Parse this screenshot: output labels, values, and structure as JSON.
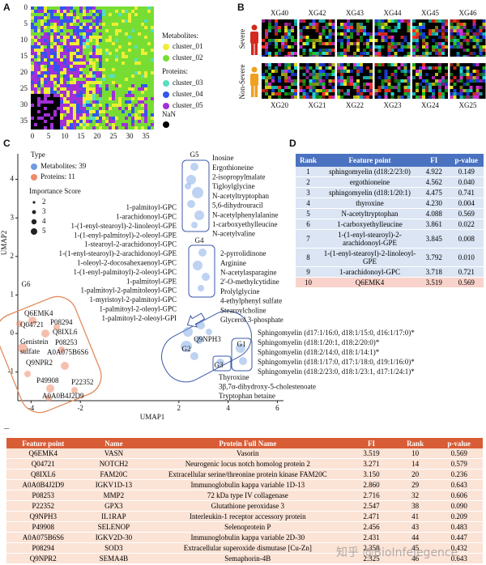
{
  "panel_a": {
    "label": "A",
    "yticks": [
      0,
      5,
      10,
      15,
      20,
      25,
      30,
      35
    ],
    "xticks": [
      0,
      5,
      10,
      15,
      20,
      25,
      30,
      35
    ],
    "metabolites_title": "Metabolites:",
    "proteins_title": "Proteins:",
    "clusters": [
      {
        "label": "cluster_01",
        "color": "#eeee33"
      },
      {
        "label": "cluster_02",
        "color": "#77dd33"
      },
      {
        "label": "cluster_03",
        "color": "#55e0c0"
      },
      {
        "label": "cluster_04",
        "color": "#3355ee"
      },
      {
        "label": "cluster_05",
        "color": "#a030d8"
      }
    ],
    "nan": {
      "label": "NaN",
      "color": "#000000"
    }
  },
  "panel_b": {
    "label": "B",
    "top_samples": [
      "XG40",
      "XG42",
      "XG43",
      "XG44",
      "XG45",
      "XG46"
    ],
    "bottom_samples": [
      "XG20",
      "XG21",
      "XG22",
      "XG23",
      "XG24",
      "XG25"
    ],
    "top_group": "Severe",
    "bottom_group": "Non-Severe"
  },
  "panel_c": {
    "label": "C",
    "type_title": "Type",
    "type_items": [
      {
        "label": "Metabolites: 39",
        "color": "#6f9be0"
      },
      {
        "label": "Proteins: 11",
        "color": "#ef8a6a"
      }
    ],
    "size_title": "Importance Score",
    "sizes": [
      2,
      3,
      4,
      5
    ],
    "x_axis_label": "UMAP1",
    "y_axis_label": "UMAP2",
    "xticks": [
      -4,
      -2,
      2,
      4,
      6
    ],
    "yticks": [
      4,
      3,
      2,
      1,
      0,
      -1
    ],
    "groups": [
      "G1",
      "G2",
      "G3",
      "G4",
      "G5",
      "G6"
    ],
    "g5_members": [
      "Inosine",
      "Ergothioneine",
      "2-isopropylmalate",
      "Tigloylglycine",
      "N-acetyltryptophan",
      "5,6-dihydrouracil",
      "N-acetylphenylalanine",
      "1-carboxyethylleucine",
      "N-acetylvaline"
    ],
    "lipid_members": [
      "1-palmitoyl-GPC",
      "1-arachidonoyl-GPC",
      "1-(1-enyl-stearoyl)-2-linoleoyl-GPE",
      "1-(1-enyl-palmitoyl)-2-oleoyl-GPE",
      "1-stearoyl-2-arachidonoyl-GPC",
      "1-(1-enyl-stearoyl)-2-arachidonoyl-GPE",
      "1-oleoyl-2-docosahexaenoyl-GPC",
      "1-(1-enyl-palmitoyl)-2-oleoyl-GPC",
      "1-palmitoyl-GPE",
      "1-palmitoyl-2-palmitoleoyl-GPC",
      "1-myristoyl-2-palmitoyl-GPC",
      "1-palmitoyl-2-oleoyl-GPC",
      "1-palmitoyl-2-oleoyl-GPI"
    ],
    "g4_members": [
      "2-pyrrolidinone",
      "Arginine",
      "N-acetylasparagine",
      "2'-O-methylcytidine",
      "Prolylglycine",
      "4-ethylphenyl sulfate",
      "Stearoylcholine",
      "Glycerol 3-phosphate"
    ],
    "g1_members": [
      "Sphingomyelin (d17:1/16:0, d18:1/15:0, d16:1/17:0)*",
      "Sphingomyelin (d18:1/20:1, d18:2/20:0)*",
      "Sphingomyelin (d18:2/14:0, d18:1/14:1)*",
      "Sphingomyelin (d18:1/17:0, d17:1/18:0, d19:1/16:0)*",
      "Sphingomyelin (d18:2/23:0, d18:1/23:1, d17:1/24:1)*"
    ],
    "g3_members": [
      "Thyroxine",
      "3β,7α-dihydroxy-5-cholestenoate",
      "Tryptophan betaine"
    ],
    "g2_point": "Q9NPH3",
    "g6_members": [
      "Q6EMK4",
      "Q04721",
      "P08294",
      "Q8IXL6",
      "Genistein",
      "sulfate",
      "P08253",
      "A0A075B6S6",
      "Q9NPR2",
      "P49908",
      "P22352",
      "A0A0B4J2D9"
    ]
  },
  "panel_d": {
    "label": "D",
    "header": [
      "Rank",
      "Feature point",
      "FI",
      "p-value"
    ],
    "rows": [
      [
        "1",
        "sphingomyelin (d18:2/23:0)",
        "4.922",
        "0.149"
      ],
      [
        "2",
        "ergothioneine",
        "4.562",
        "0.040"
      ],
      [
        "3",
        "sphingomyelin (d18:1/20:1)",
        "4.475",
        "0.741"
      ],
      [
        "4",
        "thyroxine",
        "4.230",
        "0.004"
      ],
      [
        "5",
        "N-acetyltryptophan",
        "4.088",
        "0.569"
      ],
      [
        "6",
        "1-carboxyethylleucine",
        "3.861",
        "0.022"
      ],
      [
        "7",
        "1-(1-enyl-stearoyl)-2-arachidonoyl-GPE",
        "3.845",
        "0.008"
      ],
      [
        "8",
        "1-(1-enyl-stearoyl)-2-linoleoyl-GPE",
        "3.792",
        "0.010"
      ],
      [
        "9",
        "1-arachidonoyl-GPC",
        "3.718",
        "0.721"
      ],
      [
        "10",
        "Q6EMK4",
        "3.519",
        "0.569"
      ]
    ]
  },
  "panel_e": {
    "label": "E",
    "header": [
      "Feature point",
      "Name",
      "Protein Full Name",
      "FI",
      "Rank",
      "p-value"
    ],
    "rows": [
      [
        "Q6EMK4",
        "VASN",
        "Vasorin",
        "3.519",
        "10",
        "0.569"
      ],
      [
        "Q04721",
        "NOTCH2",
        "Neurogenic locus notch homolog protein 2",
        "3.271",
        "14",
        "0.579"
      ],
      [
        "Q8IXL6",
        "FAM20C",
        "Extracellular serine/threonine protein kinase FAM20C",
        "3.150",
        "20",
        "0.236"
      ],
      [
        "A0A0B4J2D9",
        "IGKV1D-13",
        "Immunoglobulin kappa variable 1D-13",
        "2.860",
        "29",
        "0.643"
      ],
      [
        "P08253",
        "MMP2",
        "72 kDa type IV collagenase",
        "2.716",
        "32",
        "0.606"
      ],
      [
        "P22352",
        "GPX3",
        "Glutathione peroxidase 3",
        "2.547",
        "38",
        "0.090"
      ],
      [
        "Q9NPH3",
        "IL1RAP",
        "Interleukin-1 receptor accessory protein",
        "2.471",
        "41",
        "0.209"
      ],
      [
        "P49908",
        "SELENOP",
        "Selenoprotein P",
        "2.456",
        "43",
        "0.483"
      ],
      [
        "A0A075B6S6",
        "IGKV2D-30",
        "Immunoglobulin kappa variable 2D-30",
        "2.431",
        "44",
        "0.447"
      ],
      [
        "P08294",
        "SOD3",
        "Extracellular superoxide dismutase [Cu-Zn]",
        "2.358",
        "45",
        "0.432"
      ],
      [
        "Q9NPR2",
        "SEMA4B",
        "Semaphorin-4B",
        "2.325",
        "46",
        "0.643"
      ]
    ]
  },
  "watermark": "知乎 @BioInfelegence"
}
